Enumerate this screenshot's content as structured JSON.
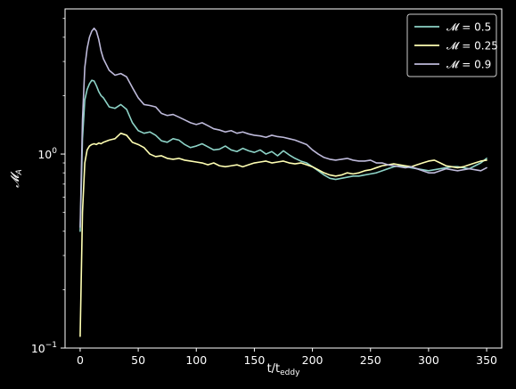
{
  "chart_data": {
    "type": "line",
    "title": "",
    "xlabel": "t/t",
    "xlabel_sub": "eddy",
    "ylabel": "𝓜",
    "ylabel_sub": "A",
    "xlim": [
      -13,
      363
    ],
    "ylim": [
      0.1,
      5.6
    ],
    "yscale": "log",
    "x_ticks": [
      0,
      50,
      100,
      150,
      200,
      250,
      300,
      350
    ],
    "x_tick_labels": [
      "0",
      "50",
      "100",
      "150",
      "200",
      "250",
      "300",
      "350"
    ],
    "y_ticks": [
      0.1,
      1
    ],
    "y_tick_label_base": "10",
    "y_tick_label_exponents": [
      "−1",
      "0"
    ],
    "grid": false,
    "legend_position": "top-right",
    "background": "#000000",
    "foreground": "#ffffff",
    "x": [
      0,
      2,
      4,
      6,
      8,
      10,
      12,
      14,
      16,
      18,
      20,
      25,
      30,
      35,
      40,
      45,
      50,
      55,
      60,
      65,
      70,
      75,
      80,
      85,
      90,
      95,
      100,
      105,
      110,
      115,
      120,
      125,
      130,
      135,
      140,
      145,
      150,
      155,
      160,
      165,
      170,
      175,
      180,
      185,
      190,
      195,
      200,
      205,
      210,
      215,
      220,
      225,
      230,
      235,
      240,
      245,
      250,
      255,
      260,
      265,
      270,
      275,
      280,
      285,
      290,
      295,
      300,
      305,
      310,
      315,
      320,
      325,
      330,
      335,
      340,
      345,
      350
    ],
    "series": [
      {
        "name": "𝓜 = 0.5",
        "color": "#8dd3c7",
        "values": [
          0.4,
          1.2,
          1.9,
          2.15,
          2.3,
          2.4,
          2.38,
          2.25,
          2.1,
          2.0,
          1.95,
          1.75,
          1.72,
          1.8,
          1.7,
          1.45,
          1.32,
          1.28,
          1.3,
          1.25,
          1.17,
          1.15,
          1.2,
          1.18,
          1.12,
          1.08,
          1.1,
          1.13,
          1.09,
          1.05,
          1.06,
          1.1,
          1.05,
          1.03,
          1.07,
          1.04,
          1.02,
          1.05,
          1.0,
          1.03,
          0.98,
          1.04,
          0.99,
          0.95,
          0.92,
          0.9,
          0.86,
          0.82,
          0.78,
          0.75,
          0.74,
          0.75,
          0.76,
          0.77,
          0.77,
          0.78,
          0.79,
          0.8,
          0.82,
          0.84,
          0.86,
          0.87,
          0.86,
          0.85,
          0.84,
          0.83,
          0.82,
          0.83,
          0.84,
          0.85,
          0.86,
          0.86,
          0.85,
          0.84,
          0.87,
          0.9,
          0.95
        ]
      },
      {
        "name": "𝓜 = 0.25",
        "color": "#ffffb3",
        "values": [
          0.115,
          0.5,
          0.9,
          1.05,
          1.1,
          1.12,
          1.13,
          1.12,
          1.14,
          1.13,
          1.15,
          1.18,
          1.2,
          1.28,
          1.25,
          1.15,
          1.12,
          1.08,
          1.0,
          0.97,
          0.98,
          0.95,
          0.94,
          0.95,
          0.93,
          0.92,
          0.91,
          0.9,
          0.88,
          0.9,
          0.87,
          0.86,
          0.87,
          0.88,
          0.86,
          0.88,
          0.9,
          0.91,
          0.92,
          0.9,
          0.91,
          0.92,
          0.9,
          0.89,
          0.9,
          0.88,
          0.86,
          0.83,
          0.8,
          0.78,
          0.77,
          0.78,
          0.8,
          0.79,
          0.8,
          0.82,
          0.83,
          0.85,
          0.87,
          0.88,
          0.89,
          0.88,
          0.87,
          0.86,
          0.88,
          0.9,
          0.92,
          0.93,
          0.9,
          0.87,
          0.86,
          0.85,
          0.86,
          0.88,
          0.9,
          0.92,
          0.93
        ]
      },
      {
        "name": "𝓜 = 0.9",
        "color": "#bebada",
        "values": [
          0.42,
          1.5,
          2.8,
          3.5,
          4.0,
          4.3,
          4.45,
          4.3,
          3.9,
          3.4,
          3.1,
          2.7,
          2.55,
          2.6,
          2.5,
          2.2,
          1.95,
          1.8,
          1.78,
          1.75,
          1.62,
          1.58,
          1.6,
          1.55,
          1.5,
          1.45,
          1.42,
          1.45,
          1.4,
          1.35,
          1.33,
          1.3,
          1.32,
          1.28,
          1.3,
          1.27,
          1.25,
          1.24,
          1.22,
          1.25,
          1.23,
          1.22,
          1.2,
          1.18,
          1.15,
          1.12,
          1.05,
          1.0,
          0.96,
          0.94,
          0.93,
          0.94,
          0.95,
          0.93,
          0.92,
          0.92,
          0.93,
          0.9,
          0.9,
          0.88,
          0.87,
          0.86,
          0.85,
          0.86,
          0.84,
          0.82,
          0.8,
          0.8,
          0.82,
          0.84,
          0.83,
          0.82,
          0.83,
          0.84,
          0.83,
          0.82,
          0.85
        ]
      }
    ]
  }
}
